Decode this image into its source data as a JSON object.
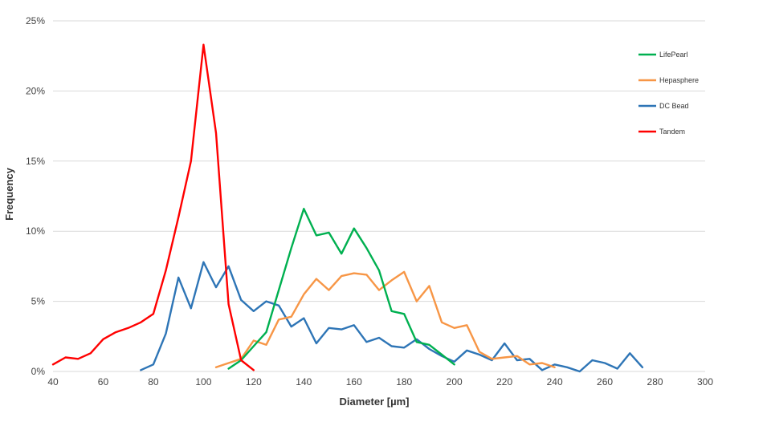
{
  "chart_data": {
    "type": "line",
    "title": "",
    "xlabel": "Diameter [µm]",
    "ylabel": "Frequency",
    "xlim": [
      40,
      300
    ],
    "ylim": [
      0,
      25
    ],
    "x_ticks": [
      "40",
      "60",
      "80",
      "100",
      "120",
      "140",
      "160",
      "180",
      "200",
      "220",
      "240",
      "260",
      "280",
      "300"
    ],
    "y_ticks": [
      "0%",
      "5%",
      "10%",
      "15%",
      "20%",
      "25%"
    ],
    "grid": "horizontal",
    "legend_position": "top-right",
    "series": [
      {
        "name": "LifePearl",
        "color": "#00b050",
        "points": [
          [
            110,
            0.2
          ],
          [
            115,
            0.8
          ],
          [
            120,
            1.8
          ],
          [
            125,
            2.8
          ],
          [
            130,
            5.8
          ],
          [
            135,
            8.8
          ],
          [
            140,
            11.6
          ],
          [
            145,
            9.7
          ],
          [
            150,
            9.9
          ],
          [
            155,
            8.4
          ],
          [
            160,
            10.2
          ],
          [
            165,
            8.8
          ],
          [
            170,
            7.2
          ],
          [
            175,
            4.3
          ],
          [
            180,
            4.1
          ],
          [
            185,
            2.1
          ],
          [
            190,
            1.9
          ],
          [
            195,
            1.2
          ],
          [
            200,
            0.5
          ]
        ]
      },
      {
        "name": "Hepasphere",
        "color": "#f79646",
        "points": [
          [
            105,
            0.3
          ],
          [
            110,
            0.6
          ],
          [
            115,
            0.9
          ],
          [
            120,
            2.2
          ],
          [
            125,
            1.9
          ],
          [
            130,
            3.7
          ],
          [
            135,
            3.9
          ],
          [
            140,
            5.5
          ],
          [
            145,
            6.6
          ],
          [
            150,
            5.8
          ],
          [
            155,
            6.8
          ],
          [
            160,
            7.0
          ],
          [
            165,
            6.9
          ],
          [
            170,
            5.8
          ],
          [
            175,
            6.5
          ],
          [
            180,
            7.1
          ],
          [
            185,
            5.0
          ],
          [
            190,
            6.1
          ],
          [
            195,
            3.5
          ],
          [
            200,
            3.1
          ],
          [
            205,
            3.3
          ],
          [
            210,
            1.4
          ],
          [
            215,
            0.9
          ],
          [
            220,
            1.0
          ],
          [
            225,
            1.1
          ],
          [
            230,
            0.5
          ],
          [
            235,
            0.6
          ],
          [
            240,
            0.3
          ]
        ]
      },
      {
        "name": "DC Bead",
        "color": "#2e75b6",
        "points": [
          [
            75,
            0.1
          ],
          [
            80,
            0.5
          ],
          [
            85,
            2.7
          ],
          [
            90,
            6.7
          ],
          [
            95,
            4.5
          ],
          [
            100,
            7.8
          ],
          [
            105,
            6.0
          ],
          [
            110,
            7.5
          ],
          [
            115,
            5.1
          ],
          [
            120,
            4.3
          ],
          [
            125,
            5.0
          ],
          [
            130,
            4.7
          ],
          [
            135,
            3.2
          ],
          [
            140,
            3.8
          ],
          [
            145,
            2.0
          ],
          [
            150,
            3.1
          ],
          [
            155,
            3.0
          ],
          [
            160,
            3.3
          ],
          [
            165,
            2.1
          ],
          [
            170,
            2.4
          ],
          [
            175,
            1.8
          ],
          [
            180,
            1.7
          ],
          [
            185,
            2.3
          ],
          [
            190,
            1.6
          ],
          [
            195,
            1.1
          ],
          [
            200,
            0.7
          ],
          [
            205,
            1.5
          ],
          [
            210,
            1.2
          ],
          [
            215,
            0.8
          ],
          [
            220,
            2.0
          ],
          [
            225,
            0.8
          ],
          [
            230,
            0.9
          ],
          [
            235,
            0.1
          ],
          [
            240,
            0.5
          ],
          [
            245,
            0.3
          ],
          [
            250,
            0.0
          ],
          [
            255,
            0.8
          ],
          [
            260,
            0.6
          ],
          [
            265,
            0.2
          ],
          [
            270,
            1.3
          ],
          [
            275,
            0.3
          ]
        ]
      },
      {
        "name": "Tandem",
        "color": "#ff0000",
        "points": [
          [
            40,
            0.5
          ],
          [
            45,
            1.0
          ],
          [
            50,
            0.9
          ],
          [
            55,
            1.3
          ],
          [
            60,
            2.3
          ],
          [
            65,
            2.8
          ],
          [
            70,
            3.1
          ],
          [
            75,
            3.5
          ],
          [
            80,
            4.1
          ],
          [
            85,
            7.2
          ],
          [
            90,
            11.0
          ],
          [
            95,
            15.0
          ],
          [
            100,
            23.3
          ],
          [
            105,
            17.0
          ],
          [
            110,
            4.8
          ],
          [
            115,
            0.8
          ],
          [
            120,
            0.1
          ]
        ]
      }
    ]
  }
}
